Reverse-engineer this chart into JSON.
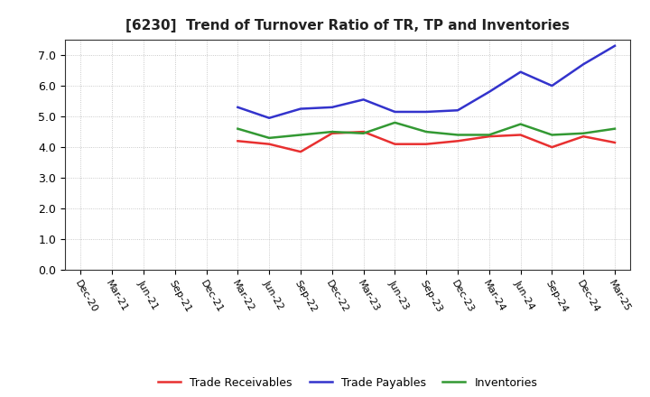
{
  "title": "[6230]  Trend of Turnover Ratio of TR, TP and Inventories",
  "x_labels": [
    "Dec-20",
    "Mar-21",
    "Jun-21",
    "Sep-21",
    "Dec-21",
    "Mar-22",
    "Jun-22",
    "Sep-22",
    "Dec-22",
    "Mar-23",
    "Jun-23",
    "Sep-23",
    "Dec-23",
    "Mar-24",
    "Jun-24",
    "Sep-24",
    "Dec-24",
    "Mar-25"
  ],
  "trade_receivables": [
    null,
    null,
    null,
    null,
    null,
    4.2,
    4.1,
    3.85,
    4.45,
    4.5,
    4.1,
    4.1,
    4.2,
    4.35,
    4.4,
    4.0,
    4.35,
    4.15
  ],
  "trade_payables": [
    null,
    null,
    null,
    null,
    null,
    5.3,
    4.95,
    5.25,
    5.3,
    5.55,
    5.15,
    5.15,
    5.2,
    5.8,
    6.45,
    6.0,
    6.7,
    7.3
  ],
  "inventories": [
    null,
    null,
    null,
    null,
    null,
    4.6,
    4.3,
    4.4,
    4.5,
    4.45,
    4.8,
    4.5,
    4.4,
    4.4,
    4.75,
    4.4,
    4.45,
    4.6
  ],
  "ylim": [
    0.0,
    7.5
  ],
  "yticks": [
    0.0,
    1.0,
    2.0,
    3.0,
    4.0,
    5.0,
    6.0,
    7.0
  ],
  "colors": {
    "trade_receivables": "#e83030",
    "trade_payables": "#3333cc",
    "inventories": "#339933"
  },
  "legend_labels": [
    "Trade Receivables",
    "Trade Payables",
    "Inventories"
  ],
  "background_color": "#ffffff",
  "grid_color": "#bbbbbb",
  "title_fontsize": 11,
  "tick_fontsize": 8,
  "linewidth": 1.8
}
